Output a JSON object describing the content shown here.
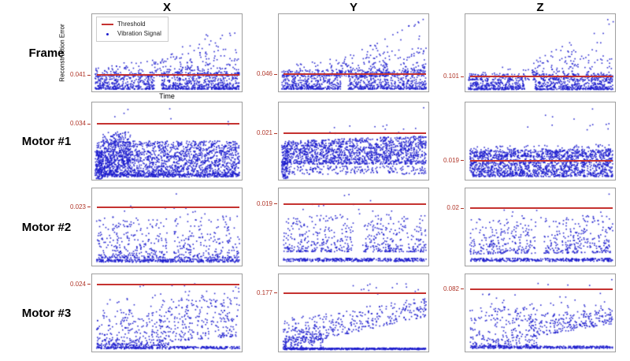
{
  "header": {
    "columns": [
      "X",
      "Y",
      "Z"
    ]
  },
  "rows": [
    {
      "label": "Frame"
    },
    {
      "label": "Motor #1"
    },
    {
      "label": "Motor #2"
    },
    {
      "label": "Motor #3"
    }
  ],
  "axes": {
    "ylabel": "Reconstruction Error",
    "xlabel": "Time"
  },
  "legend": {
    "items": [
      {
        "label": "Threshold",
        "marker": "line"
      },
      {
        "label": "Vibration Signal",
        "marker": "point"
      }
    ]
  },
  "colors": {
    "threshold_line": "#c53230",
    "tick_text": "#b03528",
    "point": "#1c1ccd",
    "plot_border": "#9e9e9e"
  },
  "chart_data": [
    {
      "row": "Frame",
      "column": "X",
      "type": "scatter",
      "threshold": 0.041,
      "threshold_label": "0.041",
      "threshold_y_frac": 0.79,
      "clusters": [
        {
          "n": 950,
          "x": [
            0.02,
            0.985
          ],
          "yt": [
            0.75,
            0.75
          ],
          "yb": [
            0.97,
            0.97
          ],
          "bias": 2.0,
          "gaps": [
            [
              0.415,
              0.465
            ]
          ]
        },
        {
          "n": 220,
          "x": [
            0.02,
            0.985
          ],
          "yt": [
            0.68,
            0.42
          ],
          "yb": [
            0.8,
            0.8
          ],
          "bias": 2.8
        },
        {
          "n": 130,
          "x": [
            0.42,
            0.985
          ],
          "yt": [
            0.58,
            0.03
          ],
          "yb": [
            0.78,
            0.78
          ],
          "bias": 2.0
        }
      ]
    },
    {
      "row": "Frame",
      "column": "Y",
      "type": "scatter",
      "threshold": 0.046,
      "threshold_label": "0.046",
      "threshold_y_frac": 0.78,
      "clusters": [
        {
          "n": 980,
          "x": [
            0.02,
            0.985
          ],
          "yt": [
            0.72,
            0.72
          ],
          "yb": [
            0.97,
            0.97
          ],
          "bias": 1.9,
          "gaps": [
            [
              0.415,
              0.46
            ]
          ]
        },
        {
          "n": 210,
          "x": [
            0.02,
            0.985
          ],
          "yt": [
            0.66,
            0.42
          ],
          "yb": [
            0.8,
            0.8
          ],
          "bias": 2.8
        },
        {
          "n": 140,
          "x": [
            0.4,
            0.985
          ],
          "yt": [
            0.6,
            0.04
          ],
          "yb": [
            0.76,
            0.76
          ],
          "bias": 2.0
        }
      ]
    },
    {
      "row": "Frame",
      "column": "Z",
      "type": "scatter",
      "threshold": 0.101,
      "threshold_label": "0.101",
      "threshold_y_frac": 0.81,
      "clusters": [
        {
          "n": 980,
          "x": [
            0.02,
            0.985
          ],
          "yt": [
            0.77,
            0.77
          ],
          "yb": [
            0.975,
            0.975
          ],
          "bias": 1.9,
          "gaps": [
            [
              0.4,
              0.465
            ]
          ]
        },
        {
          "n": 150,
          "x": [
            0.02,
            0.985
          ],
          "yt": [
            0.72,
            0.52
          ],
          "yb": [
            0.85,
            0.85
          ],
          "bias": 2.6
        },
        {
          "n": 110,
          "x": [
            0.45,
            0.985
          ],
          "yt": [
            0.6,
            0.1
          ],
          "yb": [
            0.8,
            0.8
          ],
          "bias": 2.0
        },
        {
          "n": 2,
          "x": [
            0.95,
            0.99
          ],
          "yt": [
            0.03,
            0.03
          ],
          "yb": [
            0.12,
            0.12
          ],
          "bias": 1
        }
      ]
    },
    {
      "row": "Motor #1",
      "column": "X",
      "type": "scatter",
      "threshold": 0.034,
      "threshold_label": "0.034",
      "threshold_y_frac": 0.28,
      "clusters": [
        {
          "n": 1700,
          "x": [
            0.03,
            0.985
          ],
          "yt": [
            0.5,
            0.5
          ],
          "yb": [
            0.94,
            0.94
          ],
          "bias": 1.2
        },
        {
          "n": 130,
          "x": [
            0.02,
            0.07
          ],
          "yt": [
            0.62,
            0.62
          ],
          "yb": [
            0.99,
            0.99
          ],
          "bias": 1
        },
        {
          "n": 320,
          "x": [
            0.07,
            0.26
          ],
          "yt": [
            0.38,
            0.38
          ],
          "yb": [
            0.93,
            0.93
          ],
          "bias": 1.2
        },
        {
          "n": 300,
          "x": [
            0.04,
            0.985
          ],
          "yt": [
            0.93,
            0.93
          ],
          "yb": [
            0.965,
            0.965
          ],
          "bias": 1
        },
        {
          "n": 7,
          "x": [
            0.1,
            0.95
          ],
          "yt": [
            0.05,
            0.05
          ],
          "yb": [
            0.32,
            0.32
          ],
          "bias": 1
        }
      ]
    },
    {
      "row": "Motor #1",
      "column": "Y",
      "type": "scatter",
      "threshold": 0.021,
      "threshold_label": "0.021",
      "threshold_y_frac": 0.4,
      "clusters": [
        {
          "n": 1500,
          "x": [
            0.03,
            0.985
          ],
          "yt": [
            0.5,
            0.43
          ],
          "yb": [
            0.8,
            0.8
          ],
          "bias": 1.2
        },
        {
          "n": 120,
          "x": [
            0.02,
            0.06
          ],
          "yt": [
            0.55,
            0.55
          ],
          "yb": [
            0.99,
            0.99
          ],
          "bias": 1
        },
        {
          "n": 190,
          "x": [
            0.06,
            0.985
          ],
          "yt": [
            0.82,
            0.82
          ],
          "yb": [
            0.93,
            0.93
          ],
          "bias": 1
        },
        {
          "n": 12,
          "x": [
            0.3,
            0.99
          ],
          "yt": [
            0.28,
            0.28
          ],
          "yb": [
            0.42,
            0.42
          ],
          "bias": 1
        },
        {
          "n": 1,
          "x": [
            0.965,
            0.975
          ],
          "yt": [
            0.06,
            0.06
          ],
          "yb": [
            0.09,
            0.09
          ],
          "bias": 1
        }
      ]
    },
    {
      "row": "Motor #1",
      "column": "Z",
      "type": "scatter",
      "threshold": 0.019,
      "threshold_label": "0.019",
      "threshold_y_frac": 0.75,
      "clusters": [
        {
          "n": 1650,
          "x": [
            0.03,
            0.985
          ],
          "yt": [
            0.62,
            0.6
          ],
          "yb": [
            0.96,
            0.96
          ],
          "bias": 1.25
        },
        {
          "n": 230,
          "x": [
            0.03,
            0.985
          ],
          "yt": [
            0.56,
            0.54
          ],
          "yb": [
            0.7,
            0.7
          ],
          "bias": 2.2
        },
        {
          "n": 9,
          "x": [
            0.33,
            0.92
          ],
          "yt": [
            0.08,
            0.08
          ],
          "yb": [
            0.38,
            0.38
          ],
          "bias": 1
        },
        {
          "n": 3,
          "x": [
            0.93,
            0.975
          ],
          "yt": [
            0.08,
            0.08
          ],
          "yb": [
            0.42,
            0.42
          ],
          "bias": 1
        }
      ]
    },
    {
      "row": "Motor #2",
      "column": "X",
      "type": "scatter",
      "threshold": 0.023,
      "threshold_label": "0.023",
      "threshold_y_frac": 0.24,
      "clusters": [
        {
          "n": 560,
          "x": [
            0.03,
            0.985
          ],
          "yt": [
            0.36,
            0.36
          ],
          "yb": [
            0.9,
            0.9
          ],
          "bias": 2.1,
          "gaps": [
            [
              0.5,
              0.545
            ]
          ]
        },
        {
          "n": 340,
          "x": [
            0.03,
            0.985
          ],
          "yt": [
            0.915,
            0.915
          ],
          "yb": [
            0.955,
            0.955
          ],
          "bias": 1
        },
        {
          "n": 10,
          "x": [
            0.12,
            0.8
          ],
          "yt": [
            0.22,
            0.22
          ],
          "yb": [
            0.36,
            0.36
          ],
          "bias": 1
        },
        {
          "n": 1,
          "x": [
            0.555,
            0.565
          ],
          "yt": [
            0.07,
            0.07
          ],
          "yb": [
            0.09,
            0.09
          ],
          "bias": 1
        }
      ]
    },
    {
      "row": "Motor #2",
      "column": "Y",
      "type": "scatter",
      "threshold": 0.019,
      "threshold_label": "0.019",
      "threshold_y_frac": 0.2,
      "clusters": [
        {
          "n": 560,
          "x": [
            0.03,
            0.985
          ],
          "yt": [
            0.34,
            0.34
          ],
          "yb": [
            0.82,
            0.82
          ],
          "bias": 2.0,
          "gaps": [
            [
              0.5,
              0.56
            ]
          ]
        },
        {
          "n": 340,
          "x": [
            0.03,
            0.985
          ],
          "yt": [
            0.905,
            0.905
          ],
          "yb": [
            0.945,
            0.945
          ],
          "bias": 1
        },
        {
          "n": 10,
          "x": [
            0.1,
            0.78
          ],
          "yt": [
            0.13,
            0.13
          ],
          "yb": [
            0.34,
            0.34
          ],
          "bias": 1
        },
        {
          "n": 2,
          "x": [
            0.42,
            0.47
          ],
          "yt": [
            0.05,
            0.05
          ],
          "yb": [
            0.11,
            0.11
          ],
          "bias": 1
        }
      ]
    },
    {
      "row": "Motor #2",
      "column": "Z",
      "type": "scatter",
      "threshold": 0.02,
      "threshold_label": "0.02",
      "threshold_y_frac": 0.26,
      "clusters": [
        {
          "n": 560,
          "x": [
            0.03,
            0.985
          ],
          "yt": [
            0.4,
            0.34
          ],
          "yb": [
            0.85,
            0.83
          ],
          "bias": 1.9,
          "gaps": [
            [
              0.47,
              0.525
            ]
          ]
        },
        {
          "n": 340,
          "x": [
            0.03,
            0.985
          ],
          "yt": [
            0.905,
            0.905
          ],
          "yb": [
            0.945,
            0.945
          ],
          "bias": 1
        },
        {
          "n": 12,
          "x": [
            0.15,
            0.92
          ],
          "yt": [
            0.26,
            0.26
          ],
          "yb": [
            0.42,
            0.42
          ],
          "bias": 1
        },
        {
          "n": 1,
          "x": [
            0.955,
            0.965
          ],
          "yt": [
            0.06,
            0.06
          ],
          "yb": [
            0.085,
            0.085
          ],
          "bias": 1
        }
      ]
    },
    {
      "row": "Motor #3",
      "column": "X",
      "type": "scatter",
      "threshold": 0.024,
      "threshold_label": "0.024",
      "threshold_y_frac": 0.13,
      "clusters": [
        {
          "n": 300,
          "x": [
            0.03,
            0.52
          ],
          "yt": [
            0.46,
            0.46
          ],
          "yb": [
            0.92,
            0.92
          ],
          "bias": 2.1
        },
        {
          "n": 270,
          "x": [
            0.45,
            0.985
          ],
          "yt": [
            0.33,
            0.3
          ],
          "yb": [
            0.88,
            0.8
          ],
          "bias": 1.6
        },
        {
          "n": 40,
          "x": [
            0.1,
            0.985
          ],
          "yt": [
            0.3,
            0.16
          ],
          "yb": [
            0.48,
            0.42
          ],
          "bias": 1.4
        },
        {
          "n": 320,
          "x": [
            0.03,
            0.985
          ],
          "yt": [
            0.935,
            0.935
          ],
          "yb": [
            0.965,
            0.965
          ],
          "bias": 1
        },
        {
          "n": 5,
          "x": [
            0.22,
            0.97
          ],
          "yt": [
            0.1,
            0.1
          ],
          "yb": [
            0.16,
            0.16
          ],
          "bias": 1
        }
      ]
    },
    {
      "row": "Motor #3",
      "column": "Y",
      "type": "scatter",
      "threshold": 0.177,
      "threshold_label": "0.177",
      "threshold_y_frac": 0.24,
      "clusters": [
        {
          "n": 380,
          "x": [
            0.03,
            0.985
          ],
          "yt": [
            0.58,
            0.3
          ],
          "yb": [
            0.95,
            0.55
          ],
          "bias": 1.35
        },
        {
          "n": 130,
          "x": [
            0.03,
            0.3
          ],
          "yt": [
            0.72,
            0.72
          ],
          "yb": [
            0.96,
            0.96
          ],
          "bias": 1.2
        },
        {
          "n": 14,
          "x": [
            0.42,
            0.99
          ],
          "yt": [
            0.12,
            0.12
          ],
          "yb": [
            0.27,
            0.27
          ],
          "bias": 1
        },
        {
          "n": 520,
          "x": [
            0.03,
            0.985
          ],
          "yt": [
            0.955,
            0.955
          ],
          "yb": [
            0.975,
            0.975
          ],
          "bias": 1
        }
      ]
    },
    {
      "row": "Motor #3",
      "column": "Z",
      "type": "scatter",
      "threshold": 0.082,
      "threshold_label": "0.082",
      "threshold_y_frac": 0.19,
      "clusters": [
        {
          "n": 260,
          "x": [
            0.03,
            0.48
          ],
          "yt": [
            0.42,
            0.42
          ],
          "yb": [
            0.93,
            0.93
          ],
          "bias": 2.0
        },
        {
          "n": 260,
          "x": [
            0.42,
            0.985
          ],
          "yt": [
            0.52,
            0.44
          ],
          "yb": [
            0.82,
            0.64
          ],
          "bias": 1.3
        },
        {
          "n": 30,
          "x": [
            0.05,
            0.985
          ],
          "yt": [
            0.22,
            0.22
          ],
          "yb": [
            0.46,
            0.46
          ],
          "bias": 1.2
        },
        {
          "n": 330,
          "x": [
            0.03,
            0.985
          ],
          "yt": [
            0.93,
            0.93
          ],
          "yb": [
            0.96,
            0.96
          ],
          "bias": 1
        },
        {
          "n": 4,
          "x": [
            0.4,
            0.92
          ],
          "yt": [
            0.11,
            0.11
          ],
          "yb": [
            0.165,
            0.165
          ],
          "bias": 1
        },
        {
          "n": 1,
          "x": [
            0.975,
            0.985
          ],
          "yt": [
            0.05,
            0.05
          ],
          "yb": [
            0.07,
            0.07
          ],
          "bias": 1
        }
      ]
    }
  ]
}
